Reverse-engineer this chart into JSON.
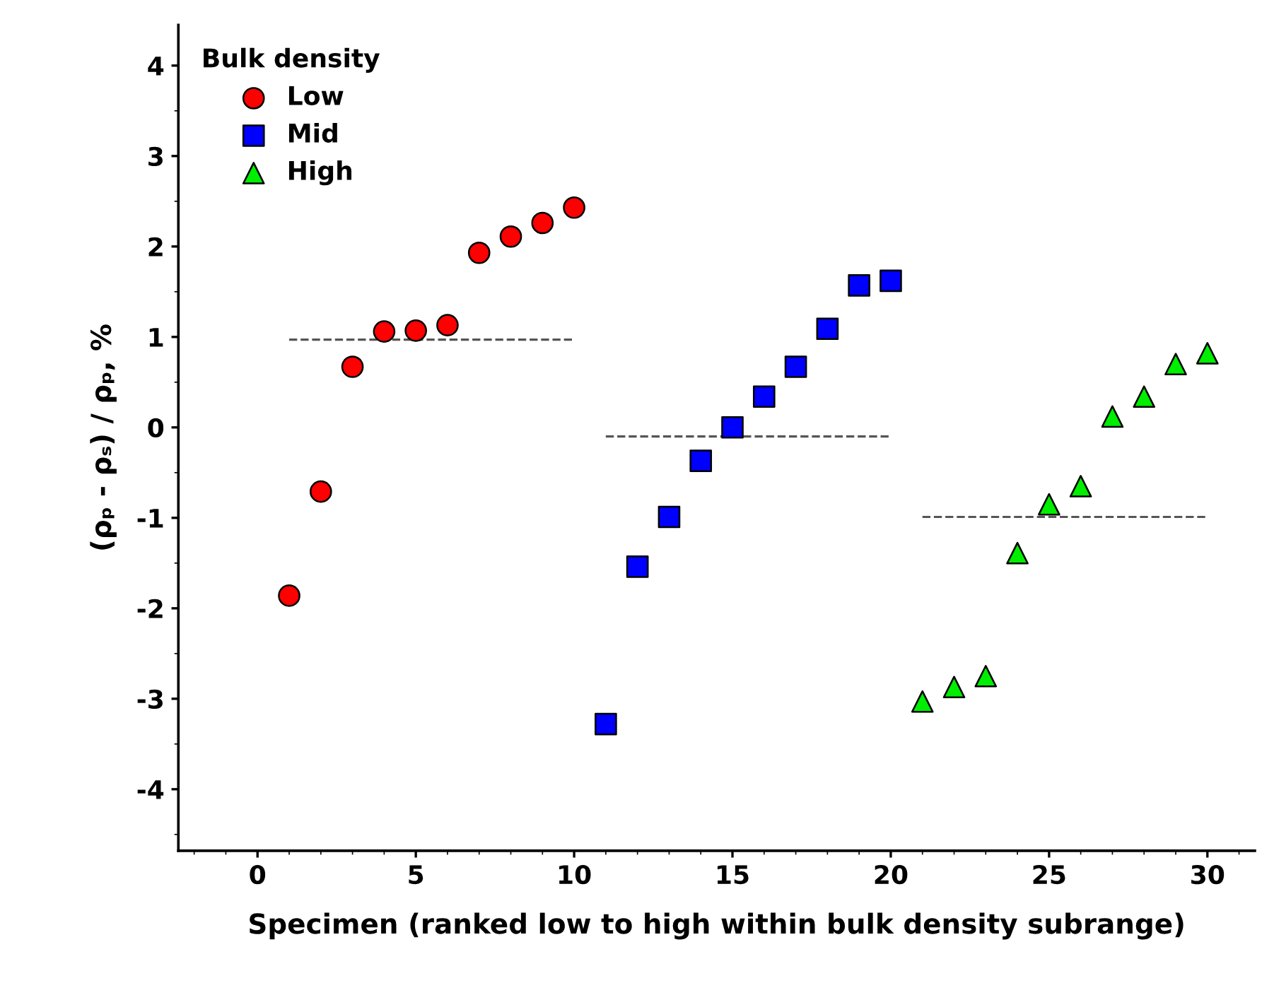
{
  "chart_data": {
    "type": "scatter",
    "xlabel": "Specimen (ranked low to high within bulk density subrange)",
    "ylabel": "(ρₚ - ρₛ) / ρₚ, %",
    "legend_title": "Bulk density",
    "legend": "top left",
    "grid": false,
    "xlim": [
      -2.5,
      31.5
    ],
    "xticks": [
      0,
      5,
      10,
      15,
      20,
      25,
      30
    ],
    "ylim": [
      -4.68,
      4.45
    ],
    "yticks": [
      -4,
      -3,
      -2,
      -1,
      0,
      1,
      2,
      3,
      4
    ],
    "series": [
      {
        "name": "Low",
        "color": "#ff0000",
        "marker": "circle",
        "x": [
          1,
          2,
          3,
          4,
          5,
          6,
          7,
          8,
          9,
          10
        ],
        "values": [
          -1.86,
          -0.71,
          0.67,
          1.06,
          1.07,
          1.13,
          1.93,
          2.11,
          2.26,
          2.43
        ]
      },
      {
        "name": "Mid",
        "color": "#0000ff",
        "marker": "square",
        "x": [
          11,
          12,
          13,
          14,
          15,
          16,
          17,
          18,
          19,
          20
        ],
        "values": [
          -3.28,
          -1.54,
          -0.99,
          -0.37,
          0.0,
          0.34,
          0.67,
          1.09,
          1.57,
          1.62
        ]
      },
      {
        "name": "High",
        "color": "#00ee00",
        "marker": "triangle",
        "x": [
          21,
          22,
          23,
          24,
          25,
          26,
          27,
          28,
          29,
          30
        ],
        "values": [
          -3.03,
          -2.87,
          -2.75,
          -1.39,
          -0.85,
          -0.65,
          0.12,
          0.34,
          0.7,
          0.82
        ]
      },
      {
        "type": "line",
        "color": "#555555",
        "line_style": "dashed",
        "x": [
          1,
          10
        ],
        "values": [
          0.97,
          0.97
        ]
      },
      {
        "type": "line",
        "color": "#555555",
        "line_style": "dashed",
        "x": [
          11,
          20
        ],
        "values": [
          -0.1,
          -0.1
        ]
      },
      {
        "type": "line",
        "color": "#555555",
        "line_style": "dashed",
        "x": [
          21,
          30
        ],
        "values": [
          -0.99,
          -0.99
        ]
      }
    ]
  }
}
